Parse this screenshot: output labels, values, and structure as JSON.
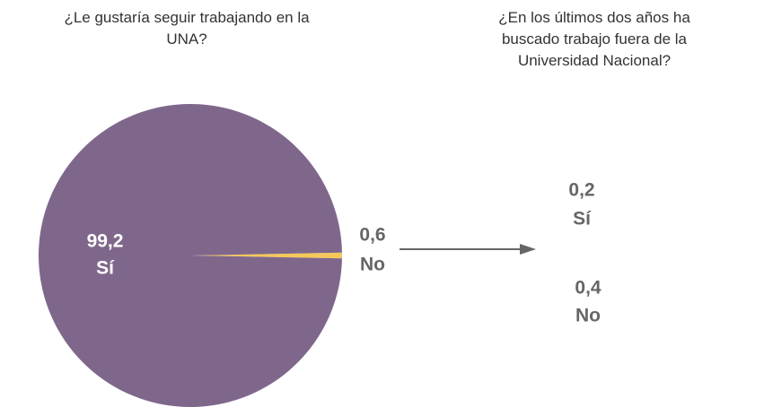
{
  "chart_data": [
    {
      "type": "pie",
      "title": "¿Le gustaría seguir trabajando en la UNA?",
      "categories": [
        "Sí",
        "No"
      ],
      "values": [
        99.2,
        0.6
      ],
      "value_labels": [
        "99,2",
        "0,6"
      ],
      "colors": [
        "#7f678c",
        "#f5c85a"
      ]
    },
    {
      "type": "bar",
      "title": "¿En los últimos dos años ha buscado trabajo fuera de la Universidad Nacional?",
      "categories": [
        "Sí",
        "No"
      ],
      "values": [
        0.2,
        0.4
      ],
      "value_labels": [
        "0,2",
        "0,4"
      ],
      "color": "#ffffff"
    }
  ]
}
